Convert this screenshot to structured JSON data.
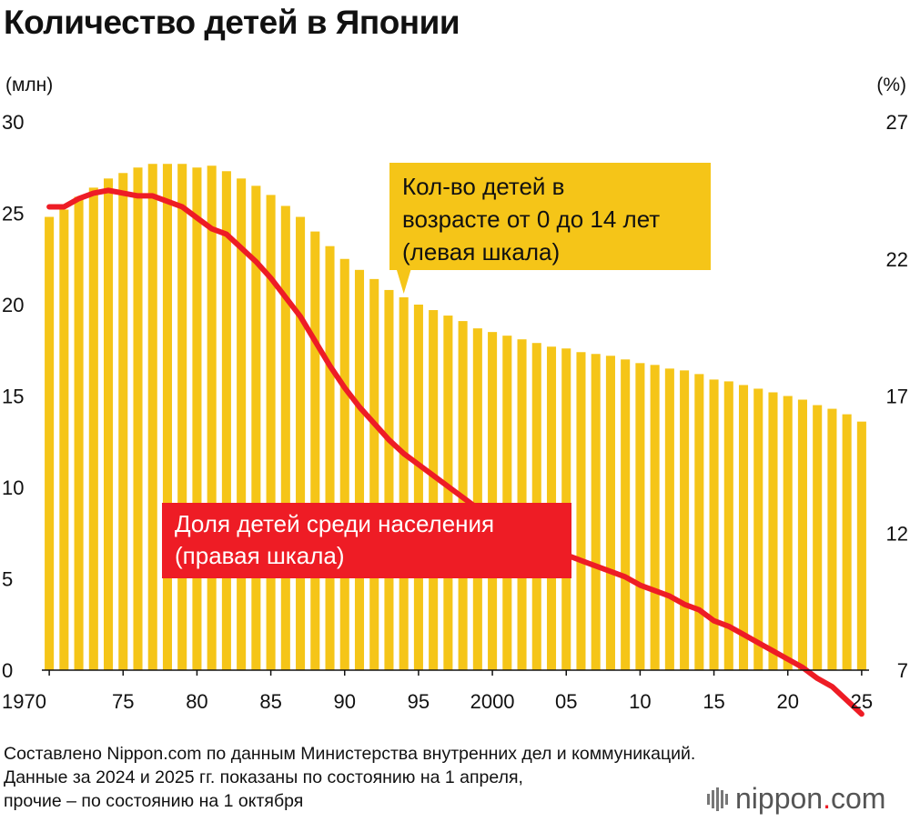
{
  "header": {
    "title": "Количество детей в Японии",
    "left_unit": "(млн)",
    "right_unit": "(%)"
  },
  "callouts": {
    "children_count": [
      "Кол-во детей в",
      "возрасте от 0 до 14 лет",
      "(левая шкала)"
    ],
    "children_share": [
      "Доля детей среди населения",
      "(правая шкала)"
    ]
  },
  "footer": {
    "lines": [
      "Составлено Nippon.com по данным Министерства внутренних дел и коммуникаций.",
      "Данные за 2024 и 2025 гг. показаны по состоянию на 1 апреля,",
      "прочие – по состоянию на 1 октября"
    ],
    "brand_main": "nippon",
    "brand_dot": ".",
    "brand_tld": "com"
  },
  "colors": {
    "bar": "#f5c518",
    "line": "#ee1c25",
    "text": "#111111"
  },
  "chart_data": {
    "type": "bar",
    "title": "Количество детей в Японии",
    "categories": [
      1970,
      1971,
      1972,
      1973,
      1974,
      1975,
      1976,
      1977,
      1978,
      1979,
      1980,
      1981,
      1982,
      1983,
      1984,
      1985,
      1986,
      1987,
      1988,
      1989,
      1990,
      1991,
      1992,
      1993,
      1994,
      1995,
      1996,
      1997,
      1998,
      1999,
      2000,
      2001,
      2002,
      2003,
      2004,
      2005,
      2006,
      2007,
      2008,
      2009,
      2010,
      2011,
      2012,
      2013,
      2014,
      2015,
      2016,
      2017,
      2018,
      2019,
      2020,
      2021,
      2022,
      2023,
      2024,
      2025
    ],
    "x_tick_labels": [
      {
        "year": 1970,
        "label": "1970"
      },
      {
        "year": 1975,
        "label": "75"
      },
      {
        "year": 1980,
        "label": "80"
      },
      {
        "year": 1985,
        "label": "85"
      },
      {
        "year": 1990,
        "label": "90"
      },
      {
        "year": 1995,
        "label": "95"
      },
      {
        "year": 2000,
        "label": "2000"
      },
      {
        "year": 2005,
        "label": "05"
      },
      {
        "year": 2010,
        "label": "10"
      },
      {
        "year": 2015,
        "label": "15"
      },
      {
        "year": 2020,
        "label": "20"
      },
      {
        "year": 2025,
        "label": "25"
      }
    ],
    "series": [
      {
        "name": "Кол-во детей в возрасте от 0 до 14 лет (левая шкала)",
        "axis": "left",
        "kind": "bar",
        "values": [
          24.8,
          25.2,
          25.9,
          26.4,
          26.9,
          27.2,
          27.5,
          27.7,
          27.7,
          27.7,
          27.5,
          27.6,
          27.3,
          26.9,
          26.5,
          26.0,
          25.4,
          24.8,
          24.0,
          23.2,
          22.5,
          21.9,
          21.4,
          20.8,
          20.4,
          20.0,
          19.7,
          19.4,
          19.1,
          18.7,
          18.5,
          18.3,
          18.1,
          17.9,
          17.7,
          17.6,
          17.4,
          17.3,
          17.2,
          17.0,
          16.8,
          16.7,
          16.5,
          16.4,
          16.2,
          15.9,
          15.8,
          15.6,
          15.4,
          15.2,
          15.0,
          14.8,
          14.5,
          14.3,
          14.0,
          13.6
        ]
      },
      {
        "name": "Доля детей среди населения (правая шкала)",
        "axis": "right",
        "kind": "line",
        "values": [
          23.9,
          23.9,
          24.2,
          24.4,
          24.5,
          24.4,
          24.3,
          24.3,
          24.1,
          23.9,
          23.5,
          23.1,
          22.9,
          22.4,
          21.9,
          21.3,
          20.6,
          19.9,
          19.0,
          18.1,
          17.3,
          16.6,
          16.0,
          15.4,
          14.9,
          14.5,
          14.1,
          13.7,
          13.3,
          12.9,
          12.5,
          12.2,
          11.9,
          11.7,
          11.4,
          11.2,
          11.0,
          10.8,
          10.6,
          10.4,
          10.1,
          9.9,
          9.7,
          9.4,
          9.2,
          8.8,
          8.6,
          8.3,
          8.0,
          7.7,
          7.4,
          7.1,
          6.7,
          6.4,
          5.9,
          5.4
        ]
      }
    ],
    "y_left": {
      "label": "(млн)",
      "ylim": [
        0,
        30
      ],
      "ticks": [
        "0",
        "5",
        "10",
        "15",
        "20",
        "25",
        "30"
      ]
    },
    "y_right": {
      "label": "(%)",
      "ylim": [
        7,
        27
      ],
      "ticks": [
        "7",
        "12",
        "17",
        "22",
        "27"
      ]
    },
    "grid": false
  }
}
